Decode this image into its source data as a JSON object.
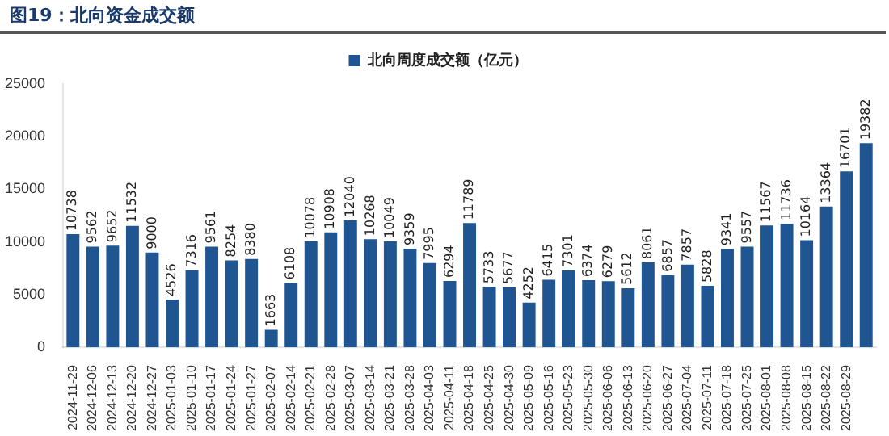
{
  "chart_data": {
    "type": "bar",
    "title": "图19：北向资金成交额",
    "categories": [
      "2024-11-29",
      "2024-12-06",
      "2024-12-13",
      "2024-12-20",
      "2024-12-27",
      "2025-01-03",
      "2025-01-10",
      "2025-01-17",
      "2025-01-24",
      "2025-01-27",
      "2025-02-07",
      "2025-02-14",
      "2025-02-21",
      "2025-02-28",
      "2025-03-07",
      "2025-03-14",
      "2025-03-21",
      "2025-03-28",
      "2025-04-03",
      "2025-04-11",
      "2025-04-18",
      "2025-04-25",
      "2025-04-30",
      "2025-05-09",
      "2025-05-16",
      "2025-05-23",
      "2025-05-30",
      "2025-06-06",
      "2025-06-13",
      "2025-06-20",
      "2025-06-27",
      "2025-07-04",
      "2025-07-11",
      "2025-07-18",
      "2025-07-25",
      "2025-08-01",
      "2025-08-08",
      "2025-08-15",
      "2025-08-22",
      "2025-08-29",
      null
    ],
    "series": [
      {
        "name": "北向周度成交额（亿元）",
        "color": "#1f5591",
        "values": [
          10738,
          9562,
          9652,
          11532,
          9000,
          4526,
          7316,
          9561,
          8254,
          8380,
          1663,
          6108,
          10078,
          10908,
          12040,
          10268,
          10049,
          9359,
          7995,
          6294,
          11789,
          5733,
          5677,
          4252,
          6415,
          7301,
          6374,
          6279,
          5612,
          8061,
          6857,
          7857,
          5828,
          9341,
          9557,
          11567,
          11736,
          10164,
          13364,
          16701,
          19382
        ]
      }
    ],
    "ylim": [
      0,
      25000
    ],
    "yticks": [
      0,
      5000,
      10000,
      15000,
      20000,
      25000
    ],
    "grid": false,
    "legend": "top",
    "data_labels": true
  }
}
